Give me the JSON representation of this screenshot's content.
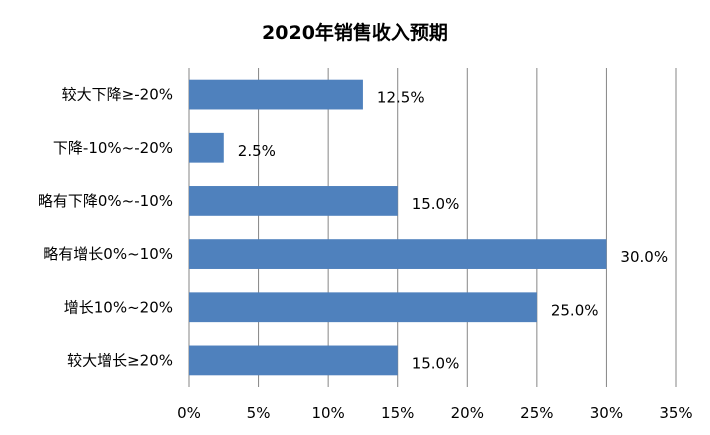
{
  "chart_data": {
    "type": "bar",
    "orientation": "horizontal",
    "title": "2020年销售收入预期",
    "categories": [
      "较大下降≥-20%",
      "下降-10%~-20%",
      "略有下降0%~-10%",
      "略有增长0%~10%",
      "增长10%~20%",
      "较大增长≥20%"
    ],
    "values": [
      12.5,
      2.5,
      15.0,
      30.0,
      25.0,
      15.0
    ],
    "data_labels": [
      "12.5%",
      "2.5%",
      "15.0%",
      "30.0%",
      "25.0%",
      "15.0%"
    ],
    "x_ticks": [
      "0%",
      "5%",
      "10%",
      "15%",
      "20%",
      "25%",
      "30%",
      "35%"
    ],
    "xlim": [
      0,
      35
    ],
    "grid": "vertical",
    "legend": "none",
    "bar_color": "#4F81BD"
  }
}
